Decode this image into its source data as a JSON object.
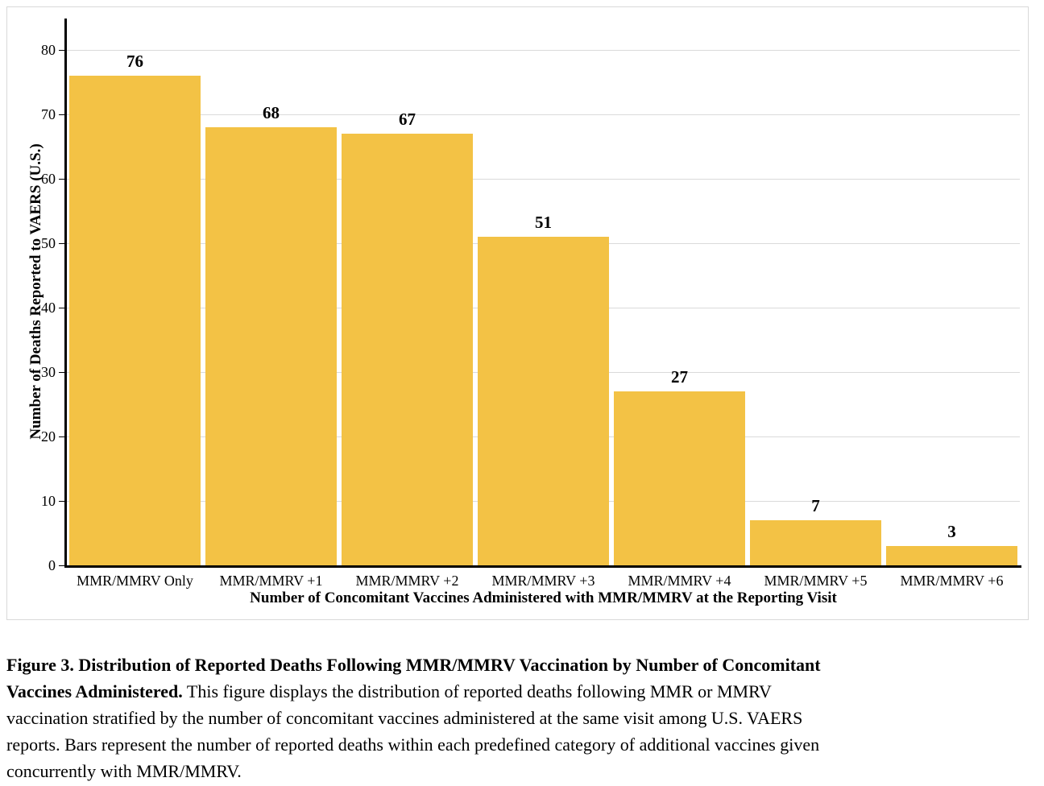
{
  "chart_data": {
    "type": "bar",
    "title": "",
    "categories": [
      "MMR/MMRV Only",
      "MMR/MMRV +1",
      "MMR/MMRV +2",
      "MMR/MMRV +3",
      "MMR/MMRV +4",
      "MMR/MMRV +5",
      "MMR/MMRV +6"
    ],
    "values": [
      76,
      68,
      67,
      51,
      27,
      7,
      3
    ],
    "data_labels": [
      "76",
      "68",
      "67",
      "51",
      "27",
      "7",
      "3"
    ],
    "xlabel": "Number of Concomitant Vaccines Administered with MMR/MMRV at the Reporting Visit",
    "ylabel": "Number of Deaths Reported to VAERS (U.S.)",
    "ylim": [
      0,
      85
    ],
    "yticks": [
      0,
      10,
      20,
      30,
      40,
      50,
      60,
      70,
      80
    ],
    "grid": true,
    "legend": "none",
    "bar_color": "#F3C245",
    "gridline_color": "#DADADA",
    "axis_color": "#000000"
  },
  "figure": {
    "caption_lines": [
      {
        "bold": "Figure 3. Distribution of Reported Deaths Following MMR/MMRV Vaccination by Number of Concomitant",
        "regular": ""
      },
      {
        "bold": "Vaccines Administered.",
        "regular": " This figure displays the distribution of reported deaths following MMR or MMRV"
      },
      {
        "bold": "",
        "regular": "vaccination stratified by the number of concomitant vaccines administered at the same visit among U.S. VAERS"
      },
      {
        "bold": "",
        "regular": "reports. Bars represent the number of reported deaths within each predefined category of additional vaccines given"
      },
      {
        "bold": "",
        "regular": "concurrently with MMR/MMRV."
      }
    ]
  }
}
